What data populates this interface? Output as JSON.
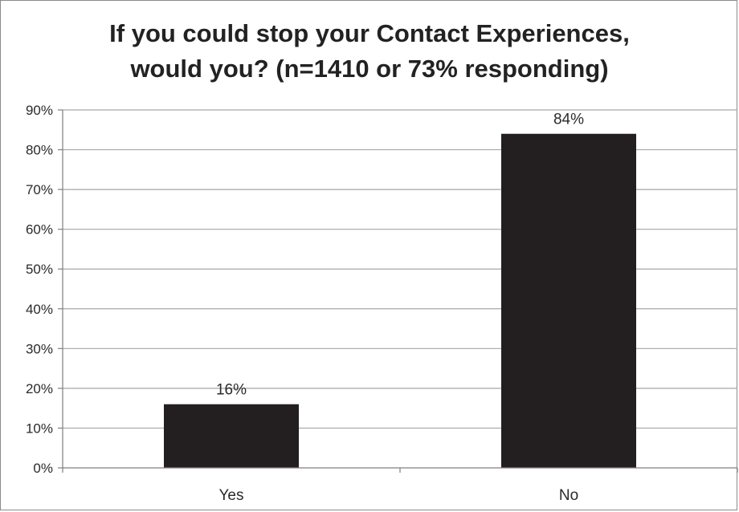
{
  "chart_data": {
    "type": "bar",
    "title_lines": [
      "If you could stop your Contact Experiences,",
      "would you? (n=1410 or 73% responding)"
    ],
    "categories": [
      "Yes",
      "No"
    ],
    "values": [
      16,
      84
    ],
    "data_labels": [
      "16%",
      "84%"
    ],
    "ylim": [
      0,
      90
    ],
    "yticks": [
      0,
      10,
      20,
      30,
      40,
      50,
      60,
      70,
      80,
      90
    ],
    "ytick_labels": [
      "0%",
      "10%",
      "20%",
      "30%",
      "40%",
      "50%",
      "60%",
      "70%",
      "80%",
      "90%"
    ],
    "xlabel": "",
    "ylabel": "",
    "grid": true,
    "legend": "none",
    "bar_color": "#231f20",
    "grid_color": "#a6a6a6"
  }
}
